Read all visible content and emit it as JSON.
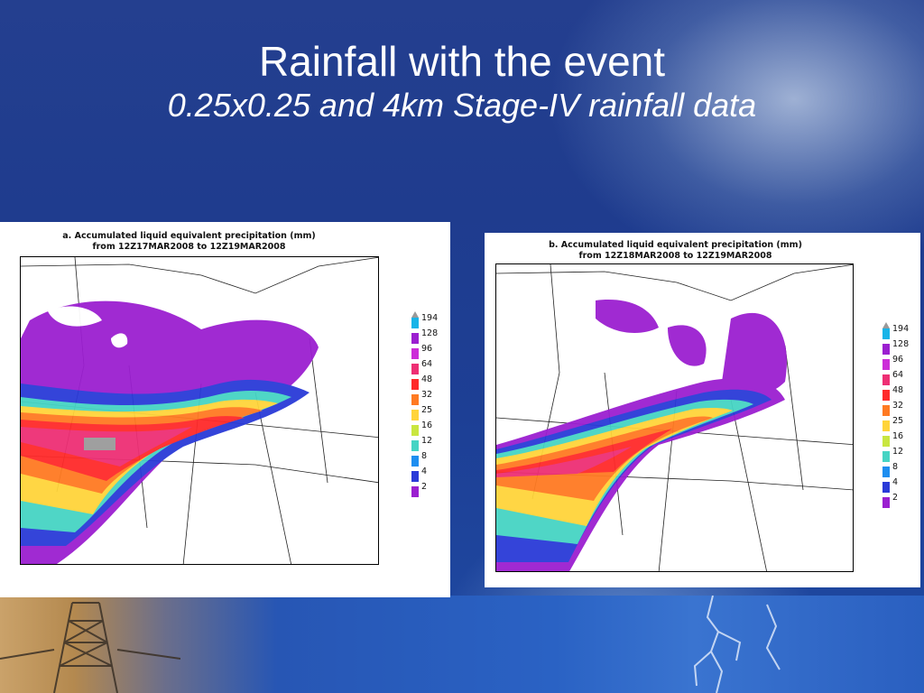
{
  "slide": {
    "title": "Rainfall with the event",
    "subtitle": "0.25x0.25 and 4km Stage-IV rainfall data"
  },
  "panels": [
    {
      "heading_line1": "a. Accumulated liquid equivalent precipitation (mm)",
      "heading_line2": "from 12Z17MAR2008 to 12Z19MAR2008"
    },
    {
      "heading_line1": "b. Accumulated liquid equivalent precipitation (mm)",
      "heading_line2": "from 12Z18MAR2008 to 12Z19MAR2008"
    }
  ],
  "legend": {
    "levels": [
      "194",
      "128",
      "96",
      "64",
      "48",
      "32",
      "25",
      "16",
      "12",
      "8",
      "4",
      "2"
    ],
    "colors": [
      "#18b4e8",
      "#9b1fd0",
      "#cc2cd8",
      "#ee2f74",
      "#ff2a2a",
      "#ff7a22",
      "#ffd43a",
      "#c9e640",
      "#46d4c4",
      "#1e8ef0",
      "#2a3ad8",
      "#9b1fd0"
    ]
  }
}
